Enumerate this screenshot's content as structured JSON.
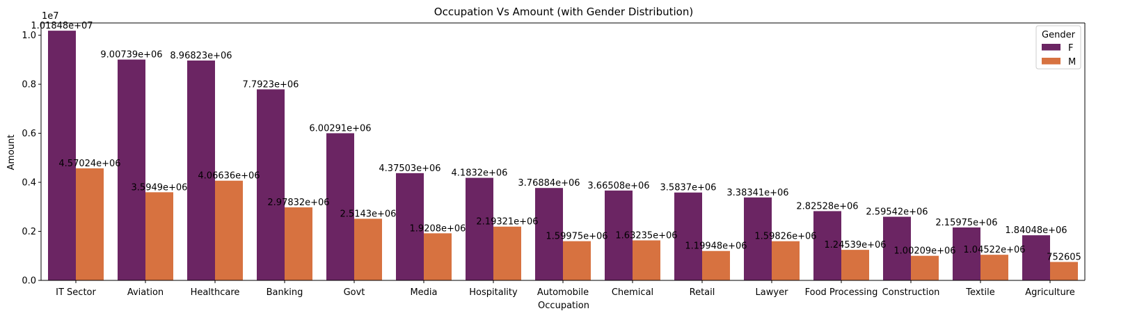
{
  "chart_data": {
    "type": "bar",
    "title": "Occupation Vs Amount (with Gender Distribution)",
    "xlabel": "Occupation",
    "ylabel": "Amount",
    "y_scale_note": "1e7",
    "ylim": [
      0,
      10500000
    ],
    "yticks": [
      0,
      2000000,
      4000000,
      6000000,
      8000000,
      10000000
    ],
    "ytick_labels": [
      "0.0",
      "0.2",
      "0.4",
      "0.6",
      "0.8",
      "1.0"
    ],
    "grid": false,
    "legend": {
      "title": "Gender",
      "placement": "top-right"
    },
    "categories": [
      "IT Sector",
      "Aviation",
      "Healthcare",
      "Banking",
      "Govt",
      "Media",
      "Hospitality",
      "Automobile",
      "Chemical",
      "Retail",
      "Lawyer",
      "Food Processing",
      "Construction",
      "Textile",
      "Agriculture"
    ],
    "series": [
      {
        "name": "F",
        "color": "#6b2563",
        "values": [
          10184800,
          9007390,
          8968230,
          7792300,
          6002910,
          4375030,
          4183200,
          3768840,
          3665080,
          3583700,
          3383410,
          2825280,
          2595420,
          2159750,
          1840480
        ],
        "labels": [
          "1.01848e+07",
          "9.00739e+06",
          "8.96823e+06",
          "7.7923e+06",
          "6.00291e+06",
          "4.37503e+06",
          "4.1832e+06",
          "3.76884e+06",
          "3.66508e+06",
          "3.5837e+06",
          "3.38341e+06",
          "2.82528e+06",
          "2.59542e+06",
          "2.15975e+06",
          "1.84048e+06"
        ]
      },
      {
        "name": "M",
        "color": "#d77240",
        "values": [
          4570240,
          3594900,
          4066360,
          2978320,
          2514300,
          1920800,
          2193210,
          1599750,
          1632350,
          1199480,
          1598260,
          1245390,
          1002090,
          1045220,
          752605
        ],
        "labels": [
          "4.57024e+06",
          "3.5949e+06",
          "4.06636e+06",
          "2.97832e+06",
          "2.5143e+06",
          "1.9208e+06",
          "2.19321e+06",
          "1.59975e+06",
          "1.63235e+06",
          "1.19948e+06",
          "1.59826e+06",
          "1.24539e+06",
          "1.00209e+06",
          "1.04522e+06",
          "752605"
        ]
      }
    ]
  }
}
